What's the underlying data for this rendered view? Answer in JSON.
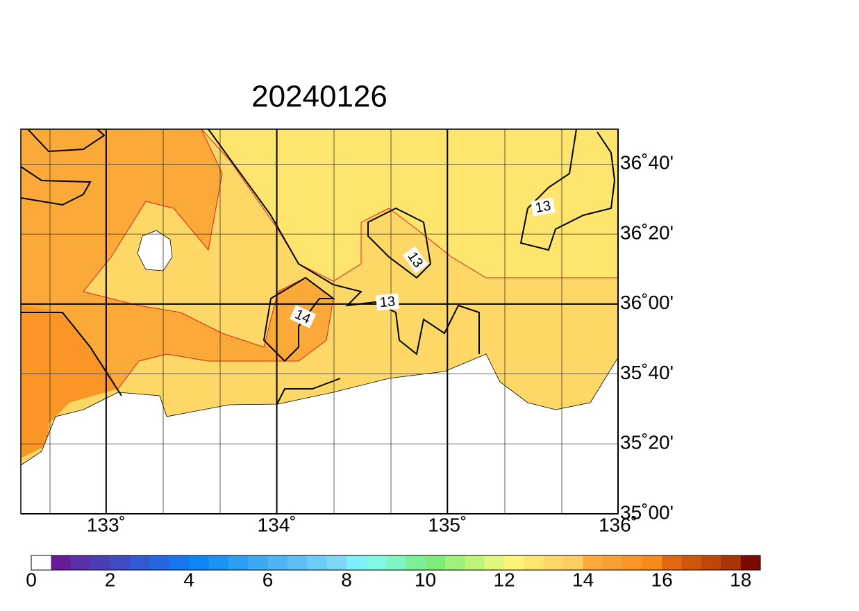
{
  "title": "20240126",
  "map": {
    "xlim": [
      132.5,
      136
    ],
    "xticks": [
      {
        "value": 133,
        "label": "133˚"
      },
      {
        "value": 134,
        "label": "134˚"
      },
      {
        "value": 135,
        "label": "135˚"
      },
      {
        "value": 136,
        "label": "136˚"
      }
    ],
    "ylim": [
      35,
      36.8333
    ],
    "yticks": [
      {
        "value": 35,
        "label": "35˚00'"
      },
      {
        "value": 35.3333,
        "label": "35˚20'"
      },
      {
        "value": 35.6667,
        "label": "35˚40'"
      },
      {
        "value": 36,
        "label": "36˚00'"
      },
      {
        "value": 36.3333,
        "label": "36˚20'"
      },
      {
        "value": 36.6667,
        "label": "36˚40'"
      }
    ],
    "contour_labels": [
      "13",
      "13",
      "13",
      "14"
    ]
  },
  "colorbar": {
    "range": [
      0,
      18.5
    ],
    "ticks": [
      0,
      2,
      4,
      6,
      8,
      10,
      12,
      14,
      16,
      18
    ],
    "colors": [
      "#ffffff",
      "#6a1b9a",
      "#5b2fa8",
      "#4b3db6",
      "#3e4bc4",
      "#3159d2",
      "#2467e0",
      "#1776ec",
      "#0a86f6",
      "#1b92f4",
      "#2c9ef3",
      "#3ca9f3",
      "#4db5f4",
      "#5dc0f5",
      "#6dccf6",
      "#7dd8f7",
      "#7ff0f8",
      "#7ff8e4",
      "#80f5c4",
      "#7cf095",
      "#7ded78",
      "#9ef27a",
      "#bff47a",
      "#dff77a",
      "#fff47a",
      "#fee56e",
      "#fdd867",
      "#fdcd5f",
      "#fbaa3a",
      "#f9a130",
      "#f99626",
      "#f78a1a",
      "#e0680e",
      "#d0570a",
      "#c04608",
      "#a83405",
      "#7d0a02"
    ]
  }
}
